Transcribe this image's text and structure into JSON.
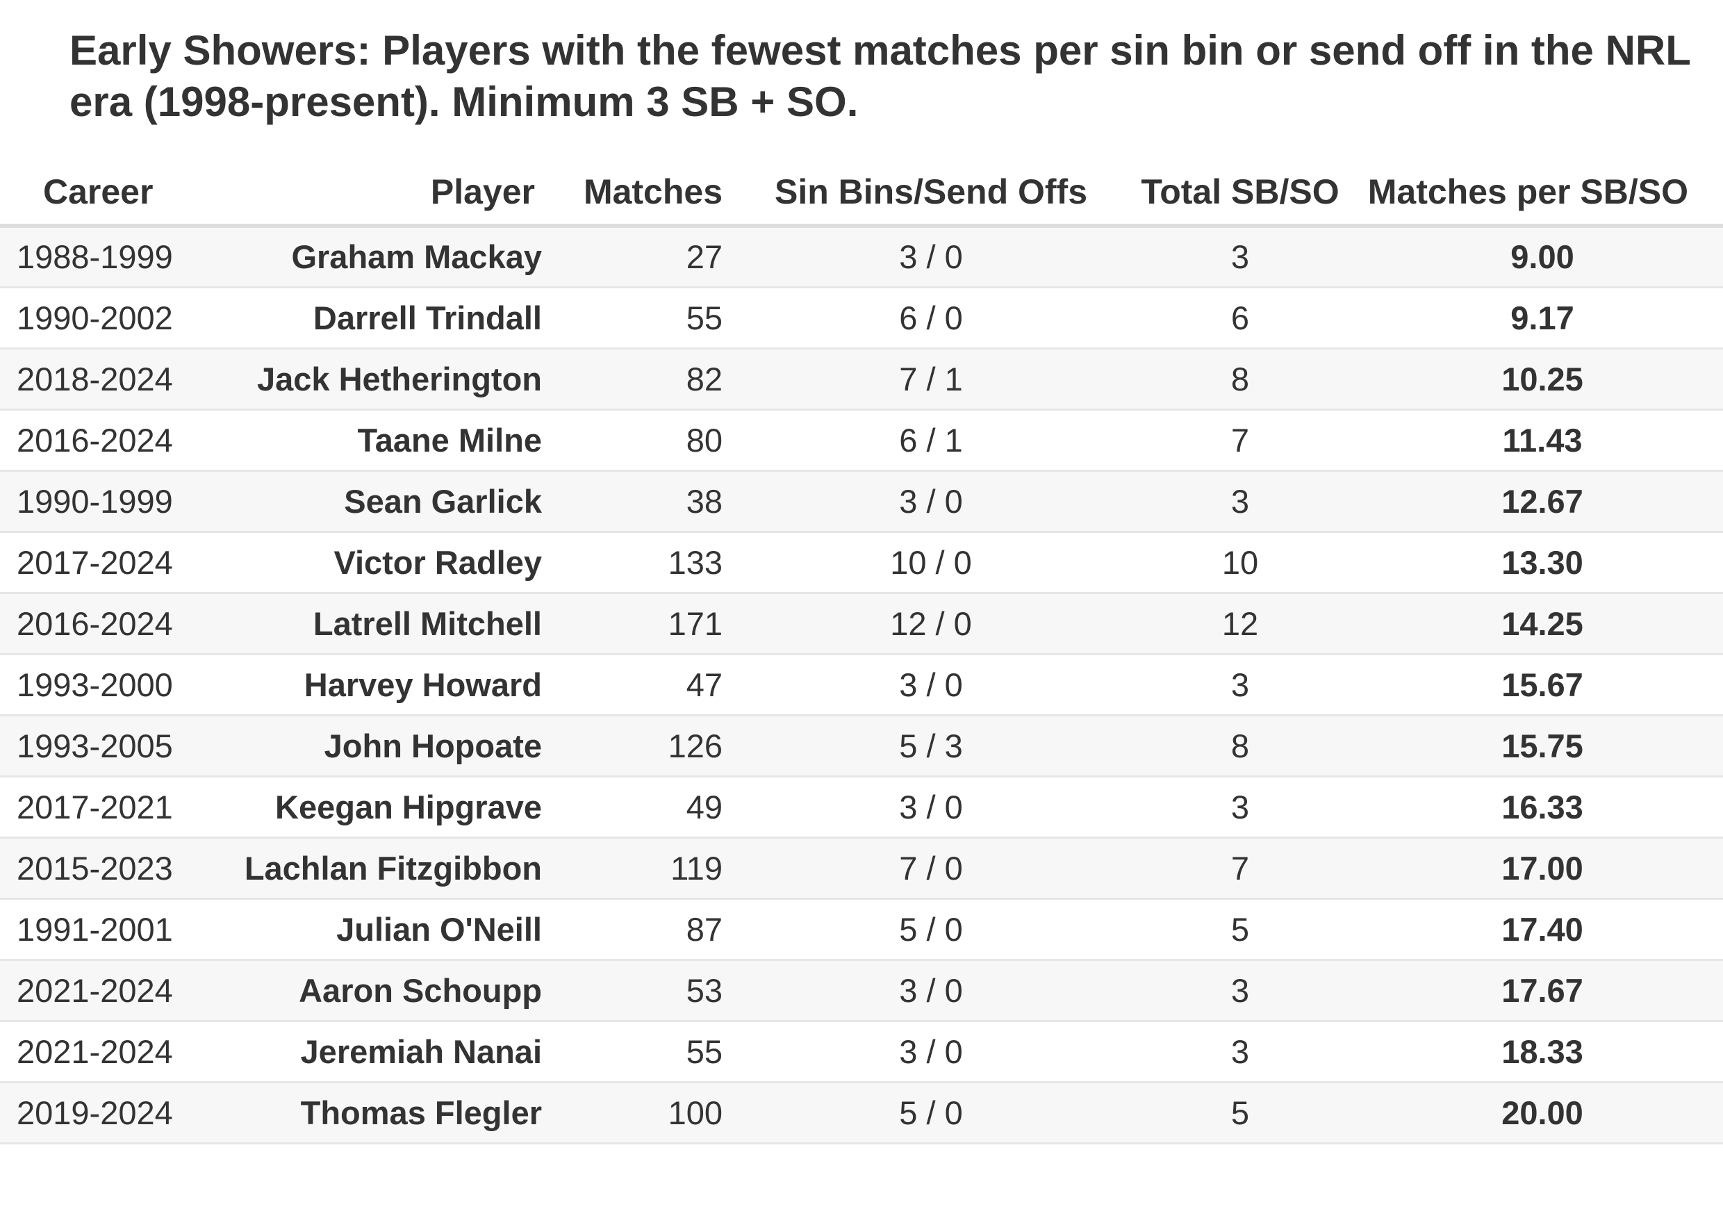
{
  "title": {
    "bold": "Early Showers:",
    "text": " Players with the fewest matches per sin bin or send off in the NRL era (1998-present). Minimum 3 SB + SO."
  },
  "chart_data": {
    "type": "table",
    "columns": [
      "Career",
      "Player",
      "Matches",
      "Sin Bins/Send Offs",
      "Total SB/SO",
      "Matches per SB/SO"
    ],
    "rows": [
      [
        "1988-1999",
        "Graham Mackay",
        "27",
        "3 / 0",
        "3",
        "9.00"
      ],
      [
        "1990-2002",
        "Darrell Trindall",
        "55",
        "6 / 0",
        "6",
        "9.17"
      ],
      [
        "2018-2024",
        "Jack Hetherington",
        "82",
        "7 / 1",
        "8",
        "10.25"
      ],
      [
        "2016-2024",
        "Taane Milne",
        "80",
        "6 / 1",
        "7",
        "11.43"
      ],
      [
        "1990-1999",
        "Sean Garlick",
        "38",
        "3 / 0",
        "3",
        "12.67"
      ],
      [
        "2017-2024",
        "Victor Radley",
        "133",
        "10 / 0",
        "10",
        "13.30"
      ],
      [
        "2016-2024",
        "Latrell Mitchell",
        "171",
        "12 / 0",
        "12",
        "14.25"
      ],
      [
        "1993-2000",
        "Harvey Howard",
        "47",
        "3 / 0",
        "3",
        "15.67"
      ],
      [
        "1993-2005",
        "John Hopoate",
        "126",
        "5 / 3",
        "8",
        "15.75"
      ],
      [
        "2017-2021",
        "Keegan Hipgrave",
        "49",
        "3 / 0",
        "3",
        "16.33"
      ],
      [
        "2015-2023",
        "Lachlan Fitzgibbon",
        "119",
        "7 / 0",
        "7",
        "17.00"
      ],
      [
        "1991-2001",
        "Julian O'Neill",
        "87",
        "5 / 0",
        "5",
        "17.40"
      ],
      [
        "2021-2024",
        "Aaron Schoupp",
        "53",
        "3 / 0",
        "3",
        "17.67"
      ],
      [
        "2021-2024",
        "Jeremiah Nanai",
        "55",
        "3 / 0",
        "3",
        "18.33"
      ],
      [
        "2019-2024",
        "Thomas Flegler",
        "100",
        "5 / 0",
        "5",
        "20.00"
      ]
    ]
  }
}
